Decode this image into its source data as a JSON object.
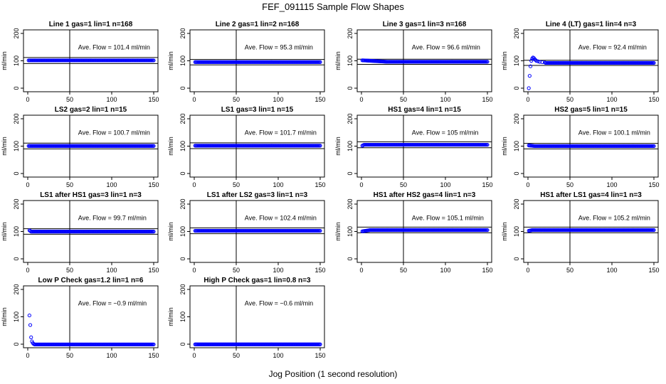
{
  "figure": {
    "title": "FEF_091115  Sample Flow Shapes",
    "xlabel": "Jog Position (1 second resolution)"
  },
  "chart_data": [
    {
      "type": "scatter",
      "title": "Line 1 gas=1 lin=1 n=168",
      "ylabel": "ml/min",
      "annotation": "Ave. Flow =  101.4  ml/min",
      "xlim": [
        0,
        150
      ],
      "ylim": [
        0,
        200
      ],
      "xticks": [
        0,
        50,
        100,
        150
      ],
      "yticks": [
        0,
        100,
        200
      ],
      "vline": 50,
      "hlines": [
        90,
        112
      ],
      "start": 101,
      "start_len": 0,
      "level": 101.4
    },
    {
      "type": "scatter",
      "title": "Line 2 gas=1 lin=2 n=168",
      "ylabel": "ml/min",
      "annotation": "Ave. Flow =  95.3  ml/min",
      "xlim": [
        0,
        150
      ],
      "ylim": [
        0,
        200
      ],
      "xticks": [
        0,
        50,
        100,
        150
      ],
      "yticks": [
        0,
        100,
        200
      ],
      "vline": 50,
      "hlines": [
        85,
        105
      ],
      "start": 95,
      "start_len": 0,
      "level": 95.3
    },
    {
      "type": "scatter",
      "title": "Line 3 gas=1 lin=3 n=168",
      "ylabel": "ml/min",
      "annotation": "Ave. Flow =  96.6  ml/min",
      "xlim": [
        0,
        150
      ],
      "ylim": [
        0,
        200
      ],
      "xticks": [
        0,
        50,
        100,
        150
      ],
      "yticks": [
        0,
        100,
        200
      ],
      "vline": 50,
      "hlines": [
        87,
        106
      ],
      "start": 102,
      "start_len": 30,
      "level": 96.6
    },
    {
      "type": "scatter",
      "title": "Line 4 (LT) gas=1 lin=4 n=3",
      "ylabel": "ml/min",
      "annotation": "Ave. Flow =  92.4  ml/min",
      "xlim": [
        0,
        150
      ],
      "ylim": [
        0,
        200
      ],
      "xticks": [
        0,
        50,
        100,
        150
      ],
      "yticks": [
        0,
        100,
        200
      ],
      "vline": 50,
      "hlines": [
        83,
        102
      ],
      "early_points": [
        [
          1,
          0
        ],
        [
          2,
          45
        ],
        [
          3,
          80
        ],
        [
          4,
          100
        ],
        [
          5,
          108
        ],
        [
          6,
          112
        ],
        [
          7,
          110
        ],
        [
          8,
          106
        ],
        [
          9,
          103
        ],
        [
          10,
          100
        ],
        [
          12,
          98
        ],
        [
          14,
          96
        ],
        [
          17,
          95
        ],
        [
          20,
          94
        ]
      ],
      "start": 94,
      "start_len": 0,
      "level": 92.4
    },
    {
      "type": "scatter",
      "title": "LS2 gas=2 lin=1 n=15",
      "ylabel": "ml/min",
      "annotation": "Ave. Flow =  100.7  ml/min",
      "xlim": [
        0,
        150
      ],
      "ylim": [
        0,
        200
      ],
      "xticks": [
        0,
        50,
        100,
        150
      ],
      "yticks": [
        0,
        100,
        200
      ],
      "vline": 50,
      "hlines": [
        90,
        111
      ],
      "start": 101,
      "start_len": 0,
      "level": 100.7
    },
    {
      "type": "scatter",
      "title": "LS1 gas=3 lin=1 n=15",
      "ylabel": "ml/min",
      "annotation": "Ave. Flow =  101.7  ml/min",
      "xlim": [
        0,
        150
      ],
      "ylim": [
        0,
        200
      ],
      "xticks": [
        0,
        50,
        100,
        150
      ],
      "yticks": [
        0,
        100,
        200
      ],
      "vline": 50,
      "hlines": [
        91,
        112
      ],
      "start": 102,
      "start_len": 0,
      "level": 101.7
    },
    {
      "type": "scatter",
      "title": "HS1 gas=4 lin=1 n=15",
      "ylabel": "ml/min",
      "annotation": "Ave. Flow =  105  ml/min",
      "xlim": [
        0,
        150
      ],
      "ylim": [
        0,
        200
      ],
      "xticks": [
        0,
        50,
        100,
        150
      ],
      "yticks": [
        0,
        100,
        200
      ],
      "vline": 50,
      "hlines": [
        94,
        116
      ],
      "start": 100,
      "start_len": 3,
      "level": 105
    },
    {
      "type": "scatter",
      "title": "HS2 gas=5 lin=1 n=15",
      "ylabel": "ml/min",
      "annotation": "Ave. Flow =  100.1  ml/min",
      "xlim": [
        0,
        150
      ],
      "ylim": [
        0,
        200
      ],
      "xticks": [
        0,
        50,
        100,
        150
      ],
      "yticks": [
        0,
        100,
        200
      ],
      "vline": 50,
      "hlines": [
        90,
        110
      ],
      "start": 103,
      "start_len": 8,
      "level": 100.1
    },
    {
      "type": "scatter",
      "title": "LS1 after HS1 gas=3 lin=1 n=3",
      "ylabel": "ml/min",
      "annotation": "Ave. Flow =  99.7  ml/min",
      "xlim": [
        0,
        150
      ],
      "ylim": [
        0,
        200
      ],
      "xticks": [
        0,
        50,
        100,
        150
      ],
      "yticks": [
        0,
        100,
        200
      ],
      "vline": 50,
      "hlines": [
        90,
        110
      ],
      "early_points": [
        [
          2,
          104
        ],
        [
          3,
          102
        ]
      ],
      "start": 100,
      "start_len": 0,
      "level": 99.7
    },
    {
      "type": "scatter",
      "title": "LS1 after LS2 gas=3 lin=1 n=3",
      "ylabel": "ml/min",
      "annotation": "Ave. Flow =  102.4  ml/min",
      "xlim": [
        0,
        150
      ],
      "ylim": [
        0,
        200
      ],
      "xticks": [
        0,
        50,
        100,
        150
      ],
      "yticks": [
        0,
        100,
        200
      ],
      "vline": 50,
      "hlines": [
        92,
        113
      ],
      "start": 102,
      "start_len": 0,
      "level": 102.4
    },
    {
      "type": "scatter",
      "title": "HS1 after HS2 gas=4 lin=1 n=3",
      "ylabel": "ml/min",
      "annotation": "Ave. Flow =  105.1  ml/min",
      "xlim": [
        0,
        150
      ],
      "ylim": [
        0,
        200
      ],
      "xticks": [
        0,
        50,
        100,
        150
      ],
      "yticks": [
        0,
        100,
        200
      ],
      "vline": 50,
      "hlines": [
        95,
        116
      ],
      "start": 100,
      "start_len": 10,
      "level": 105.1
    },
    {
      "type": "scatter",
      "title": "HS1 after LS1 gas=4 lin=1 n=3",
      "ylabel": "ml/min",
      "annotation": "Ave. Flow =  105.2  ml/min",
      "xlim": [
        0,
        150
      ],
      "ylim": [
        0,
        200
      ],
      "xticks": [
        0,
        50,
        100,
        150
      ],
      "yticks": [
        0,
        100,
        200
      ],
      "vline": 50,
      "hlines": [
        95,
        116
      ],
      "start": 102,
      "start_len": 5,
      "level": 105.2
    },
    {
      "type": "scatter",
      "title": "Low P Check gas=1.2 lin=1 n=6",
      "ylabel": "ml/min",
      "annotation": "Ave. Flow =  −0.9  ml/min",
      "xlim": [
        0,
        150
      ],
      "ylim": [
        0,
        200
      ],
      "xticks": [
        0,
        50,
        100,
        150
      ],
      "yticks": [
        0,
        100,
        200
      ],
      "vline": 50,
      "hlines": [],
      "early_points": [
        [
          2,
          105
        ],
        [
          3,
          70
        ],
        [
          4,
          25
        ],
        [
          5,
          10
        ],
        [
          6,
          4
        ],
        [
          7,
          1
        ]
      ],
      "start": 0,
      "start_len": 0,
      "level": -0.9
    },
    {
      "type": "scatter",
      "title": "High P Check gas=1 lin=0.8 n=3",
      "ylabel": "ml/min",
      "annotation": "Ave. Flow =  −0.6  ml/min",
      "xlim": [
        0,
        150
      ],
      "ylim": [
        0,
        200
      ],
      "xticks": [
        0,
        50,
        100,
        150
      ],
      "yticks": [
        0,
        100,
        200
      ],
      "vline": 50,
      "hlines": [],
      "start": 0,
      "start_len": 0,
      "level": -0.6
    }
  ],
  "colors": {
    "points": "#0000ff",
    "axis": "#000000",
    "background": "#ffffff"
  }
}
